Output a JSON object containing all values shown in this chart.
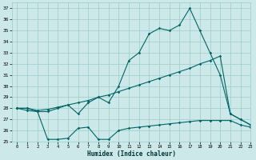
{
  "xlabel": "Humidex (Indice chaleur)",
  "xlim": [
    -0.5,
    23
  ],
  "ylim": [
    25,
    37.5
  ],
  "yticks": [
    25,
    26,
    27,
    28,
    29,
    30,
    31,
    32,
    33,
    34,
    35,
    36,
    37
  ],
  "xticks": [
    0,
    1,
    2,
    3,
    4,
    5,
    6,
    7,
    8,
    9,
    10,
    11,
    12,
    13,
    14,
    15,
    16,
    17,
    18,
    19,
    20,
    21,
    22,
    23
  ],
  "background_color": "#cce8e8",
  "grid_color": "#99cccc",
  "line_color": "#006666",
  "series": {
    "max": [
      28,
      28,
      27.7,
      27.7,
      28.0,
      28.3,
      27.5,
      28.5,
      29.0,
      28.5,
      30.0,
      32.3,
      33.0,
      34.7,
      35.2,
      35.0,
      35.5,
      37.0,
      35.0,
      33.0,
      31.0,
      27.5,
      27.0,
      26.5
    ],
    "avg": [
      28,
      28,
      27.8,
      27.9,
      28.1,
      28.3,
      28.5,
      28.7,
      29.0,
      29.2,
      29.5,
      29.8,
      30.1,
      30.4,
      30.7,
      31.0,
      31.3,
      31.6,
      32.0,
      32.3,
      32.7,
      27.5,
      27.0,
      26.5
    ],
    "min": [
      28,
      27.8,
      27.7,
      25.2,
      25.2,
      25.3,
      26.2,
      26.3,
      25.2,
      25.2,
      26.0,
      26.2,
      26.3,
      26.4,
      26.5,
      26.6,
      26.7,
      26.8,
      26.9,
      26.9,
      26.9,
      26.9,
      26.5,
      26.3
    ]
  }
}
